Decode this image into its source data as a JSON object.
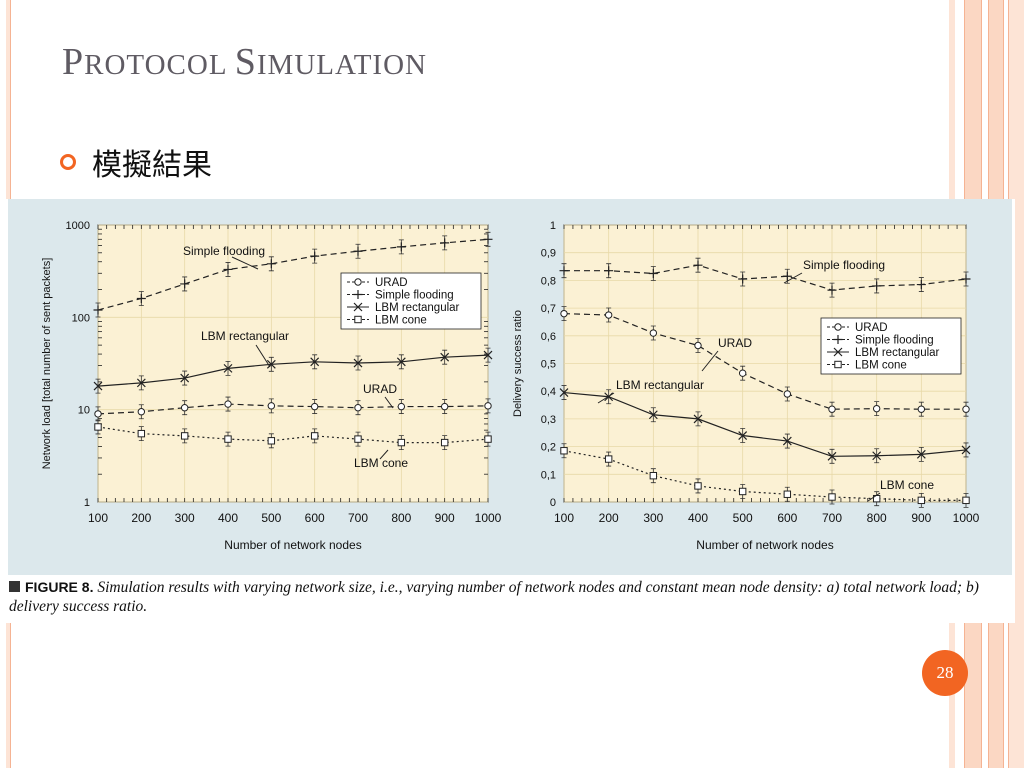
{
  "slide": {
    "title_first": "P",
    "title_rest": "ROTOCOL ",
    "title_first2": "S",
    "title_rest2": "IMULATION",
    "bullet": "模擬結果",
    "page_number": "28",
    "accent_color": "#f26522"
  },
  "caption": {
    "label": "FIGURE 8.",
    "text": "Simulation results with varying network size, i.e., varying number of network nodes and constant mean node density: a) total network load; b) delivery success ratio."
  },
  "chart_data": [
    {
      "type": "line",
      "y_scale": "log",
      "ylim": [
        1,
        1000
      ],
      "xlim": [
        100,
        1000
      ],
      "xlabel": "Number of network nodes",
      "ylabel": "Network load [total number of sent packets]",
      "x_ticks": [
        "100",
        "200",
        "300",
        "400",
        "500",
        "600",
        "700",
        "800",
        "900",
        "1000"
      ],
      "y_ticks": [
        "1",
        "10",
        "100",
        "1000"
      ],
      "x": [
        100,
        200,
        300,
        400,
        500,
        600,
        700,
        800,
        900,
        1000
      ],
      "legend_position": "top-right",
      "series": [
        {
          "name": "URAD",
          "marker": "circle",
          "dash": "6,4",
          "values": [
            9,
            9.5,
            10.5,
            11.5,
            11,
            10.8,
            10.5,
            10.8,
            10.8,
            11
          ]
        },
        {
          "name": "Simple flooding",
          "marker": "plus",
          "dash": "6,4",
          "values": [
            120,
            160,
            230,
            330,
            380,
            460,
            520,
            580,
            640,
            700
          ]
        },
        {
          "name": "LBM rectangular",
          "marker": "x",
          "dash": "",
          "values": [
            18,
            19.5,
            22,
            28,
            31,
            33,
            32,
            33,
            37,
            39
          ]
        },
        {
          "name": "LBM cone",
          "marker": "square",
          "dash": "2,3",
          "values": [
            6.5,
            5.5,
            5.2,
            4.8,
            4.6,
            5.2,
            4.8,
            4.4,
            4.4,
            4.8
          ]
        }
      ],
      "annotations": [
        "Simple flooding",
        "LBM rectangular",
        "URAD",
        "LBM cone"
      ]
    },
    {
      "type": "line",
      "ylim": [
        0,
        1
      ],
      "xlim": [
        100,
        1000
      ],
      "xlabel": "Number of network nodes",
      "ylabel": "Delivery success ratio",
      "x_ticks": [
        "100",
        "200",
        "300",
        "400",
        "500",
        "600",
        "700",
        "800",
        "900",
        "1000"
      ],
      "y_ticks": [
        "0",
        "0,1",
        "0,2",
        "0,3",
        "0,4",
        "0,5",
        "0,6",
        "0,7",
        "0,8",
        "0,9",
        "1"
      ],
      "x": [
        100,
        200,
        300,
        400,
        500,
        600,
        700,
        800,
        900,
        1000
      ],
      "legend_position": "center-right",
      "series": [
        {
          "name": "URAD",
          "marker": "circle",
          "dash": "6,4",
          "values": [
            0.68,
            0.675,
            0.61,
            0.565,
            0.465,
            0.39,
            0.335,
            0.337,
            0.335,
            0.335
          ]
        },
        {
          "name": "Simple flooding",
          "marker": "plus",
          "dash": "6,4",
          "values": [
            0.835,
            0.835,
            0.825,
            0.855,
            0.805,
            0.815,
            0.765,
            0.78,
            0.785,
            0.805
          ]
        },
        {
          "name": "LBM rectangular",
          "marker": "x",
          "dash": "",
          "values": [
            0.395,
            0.38,
            0.315,
            0.3,
            0.24,
            0.22,
            0.165,
            0.167,
            0.172,
            0.188
          ]
        },
        {
          "name": "LBM cone",
          "marker": "square",
          "dash": "2,3",
          "values": [
            0.185,
            0.155,
            0.095,
            0.058,
            0.038,
            0.028,
            0.018,
            0.012,
            0.006,
            0.006
          ]
        }
      ],
      "annotations": [
        "Simple flooding",
        "URAD",
        "LBM rectangular",
        "LBM cone"
      ]
    }
  ]
}
